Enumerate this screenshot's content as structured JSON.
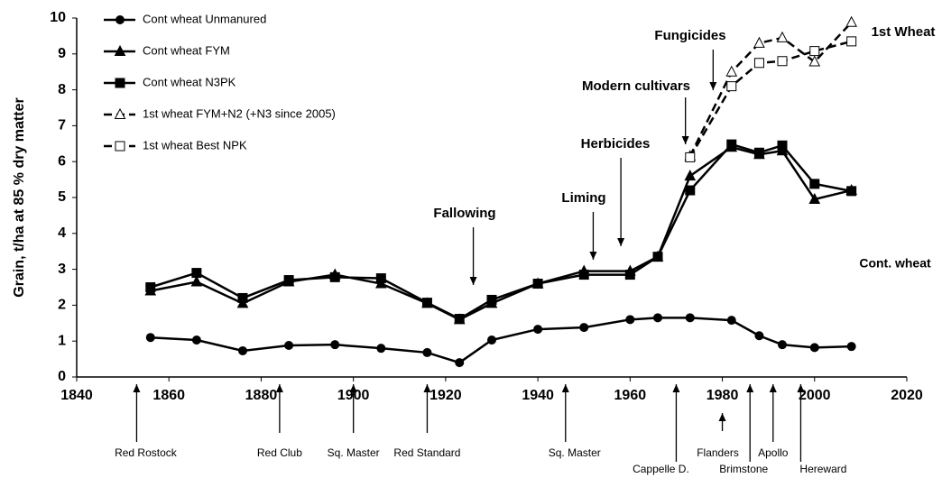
{
  "chart_data": {
    "type": "line",
    "y_label": "Grain, t/ha at 85 % dry matter",
    "x": [
      1856,
      1866,
      1876,
      1886,
      1896,
      1906,
      1916,
      1923,
      1930,
      1940,
      1950,
      1960,
      1966,
      1973,
      1982,
      1988,
      1993,
      2000,
      2008
    ],
    "series": [
      {
        "name": "Cont wheat Unmanured",
        "color": "#000000",
        "marker": "circle",
        "dashed": false,
        "values": [
          1.1,
          1.03,
          0.73,
          0.88,
          0.9,
          0.8,
          0.68,
          0.4,
          1.03,
          1.33,
          1.38,
          1.6,
          1.65,
          1.65,
          1.58,
          1.15,
          0.9,
          0.82,
          0.85
        ]
      },
      {
        "name": "Cont wheat FYM",
        "color": "#000000",
        "marker": "triangle",
        "dashed": false,
        "values": [
          2.4,
          2.65,
          2.05,
          2.65,
          2.85,
          2.6,
          2.05,
          1.6,
          2.05,
          2.6,
          2.95,
          2.95,
          3.35,
          5.6,
          6.4,
          6.2,
          6.3,
          4.95,
          5.2
        ]
      },
      {
        "name": "Cont wheat N3PK",
        "color": "#000000",
        "marker": "square",
        "dashed": false,
        "values": [
          2.5,
          2.9,
          2.2,
          2.7,
          2.78,
          2.75,
          2.07,
          1.62,
          2.15,
          2.6,
          2.85,
          2.85,
          3.35,
          5.2,
          6.48,
          6.25,
          6.45,
          5.38,
          5.18
        ]
      },
      {
        "name": "1st wheat FYM+N2 (+N3 since 2005)",
        "color": "#000000",
        "marker": "open-triangle",
        "dashed": true,
        "values": [
          null,
          null,
          null,
          null,
          null,
          null,
          null,
          null,
          null,
          null,
          null,
          null,
          null,
          6.15,
          8.5,
          9.3,
          9.45,
          8.78,
          9.88
        ]
      },
      {
        "name": "1st wheat Best NPK",
        "color": "#000000",
        "marker": "open-square",
        "dashed": true,
        "values": [
          null,
          null,
          null,
          null,
          null,
          null,
          null,
          null,
          null,
          null,
          null,
          null,
          null,
          6.12,
          8.1,
          8.75,
          8.8,
          9.08,
          9.35
        ]
      }
    ],
    "xlim": [
      1840,
      2020
    ],
    "xticks": [
      1840,
      1860,
      1880,
      1900,
      1920,
      1940,
      1960,
      1980,
      2000,
      2020
    ],
    "ylim": [
      0,
      10
    ],
    "yticks": [
      0,
      1,
      2,
      3,
      4,
      5,
      6,
      7,
      8,
      9,
      10
    ],
    "grid": false,
    "legend": "upper left",
    "treatments": [
      {
        "label": "Fallowing",
        "x": 1926
      },
      {
        "label": "Liming",
        "x": 1952
      },
      {
        "label": "Herbicides",
        "x": 1958
      },
      {
        "label": "Modern cultivars",
        "x": 1972
      },
      {
        "label": "Fungicides",
        "x": 1978
      }
    ],
    "cultivars": [
      {
        "label": "Red Rostock",
        "x": 1853
      },
      {
        "label": "Red Club",
        "x": 1884
      },
      {
        "label": "Sq. Master",
        "x": 1900
      },
      {
        "label": "Red Standard",
        "x": 1916
      },
      {
        "label": "Sq. Master",
        "x": 1946
      },
      {
        "label": "Cappelle D.",
        "x": 1970
      },
      {
        "label": "Flanders",
        "x": 1980
      },
      {
        "label": "Brimstone",
        "x": 1986
      },
      {
        "label": "Apollo",
        "x": 1991
      },
      {
        "label": "Hereward",
        "x": 1997
      }
    ],
    "annotations": [
      "1st Wheat",
      "Cont. wheat"
    ]
  }
}
